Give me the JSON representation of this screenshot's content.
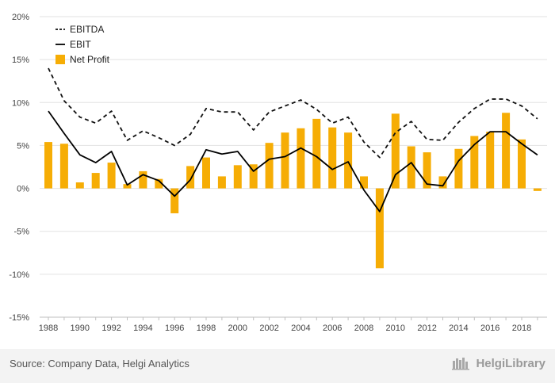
{
  "colors": {
    "ebitda": "#111111",
    "ebit": "#000000",
    "net_profit": "#f6ad05",
    "grid": "#e2e2e2",
    "axis": "#bfbfbf",
    "tick_text": "#444444",
    "footer_bg": "#f3f3f3"
  },
  "footer": {
    "source": "Source: Company Data, Helgi Analytics",
    "logo_text": "HelgiLibrary",
    "logo_icon": "library-icon"
  },
  "chart_data": {
    "type": "bar",
    "years": [
      1988,
      1989,
      1990,
      1991,
      1992,
      1993,
      1994,
      1995,
      1996,
      1997,
      1998,
      1999,
      2000,
      2001,
      2002,
      2003,
      2004,
      2005,
      2006,
      2007,
      2008,
      2009,
      2010,
      2011,
      2012,
      2013,
      2014,
      2015,
      2016,
      2017,
      2018,
      2019
    ],
    "x_tick_labels": [
      "1988",
      "1990",
      "1992",
      "1994",
      "1996",
      "1998",
      "2000",
      "2002",
      "2004",
      "2006",
      "2008",
      "2010",
      "2012",
      "2014",
      "2016",
      "2018"
    ],
    "y_ticks": [
      20,
      15,
      10,
      5,
      0,
      -5,
      -10,
      -15
    ],
    "y_tick_labels": [
      "20%",
      "15%",
      "10%",
      "5%",
      "0%",
      "-5%",
      "-10%",
      "-15%"
    ],
    "ylim": [
      -15,
      20
    ],
    "grid": true,
    "legend_position": "top-left",
    "series": [
      {
        "name": "EBITDA",
        "type": "line",
        "style": "dashed",
        "values": [
          14.0,
          10.2,
          8.3,
          7.6,
          9.0,
          5.6,
          6.7,
          5.9,
          5.0,
          6.3,
          9.3,
          8.9,
          8.9,
          6.8,
          8.9,
          9.6,
          10.3,
          9.2,
          7.6,
          8.3,
          5.4,
          3.6,
          6.5,
          7.8,
          5.7,
          5.6,
          7.7,
          9.3,
          10.4,
          10.4,
          9.6,
          8.1
        ]
      },
      {
        "name": "EBIT",
        "type": "line",
        "style": "solid",
        "values": [
          9.0,
          6.4,
          3.9,
          3.0,
          4.3,
          0.4,
          1.6,
          0.9,
          -0.9,
          1.0,
          4.5,
          4.0,
          4.3,
          2.0,
          3.4,
          3.7,
          4.7,
          3.7,
          2.2,
          3.1,
          -0.2,
          -2.7,
          1.6,
          3.0,
          0.5,
          0.3,
          3.2,
          5.1,
          6.6,
          6.6,
          5.2,
          3.9
        ]
      },
      {
        "name": "Net Profit",
        "type": "bar",
        "values": [
          5.4,
          5.2,
          0.7,
          1.8,
          3.0,
          0.5,
          2.0,
          1.1,
          -2.9,
          2.6,
          3.6,
          1.4,
          2.7,
          2.8,
          5.3,
          6.5,
          7.0,
          8.1,
          7.1,
          6.5,
          1.4,
          -9.3,
          8.7,
          4.9,
          4.2,
          1.4,
          4.6,
          6.1,
          6.6,
          8.8,
          5.7,
          -0.3
        ]
      }
    ]
  }
}
